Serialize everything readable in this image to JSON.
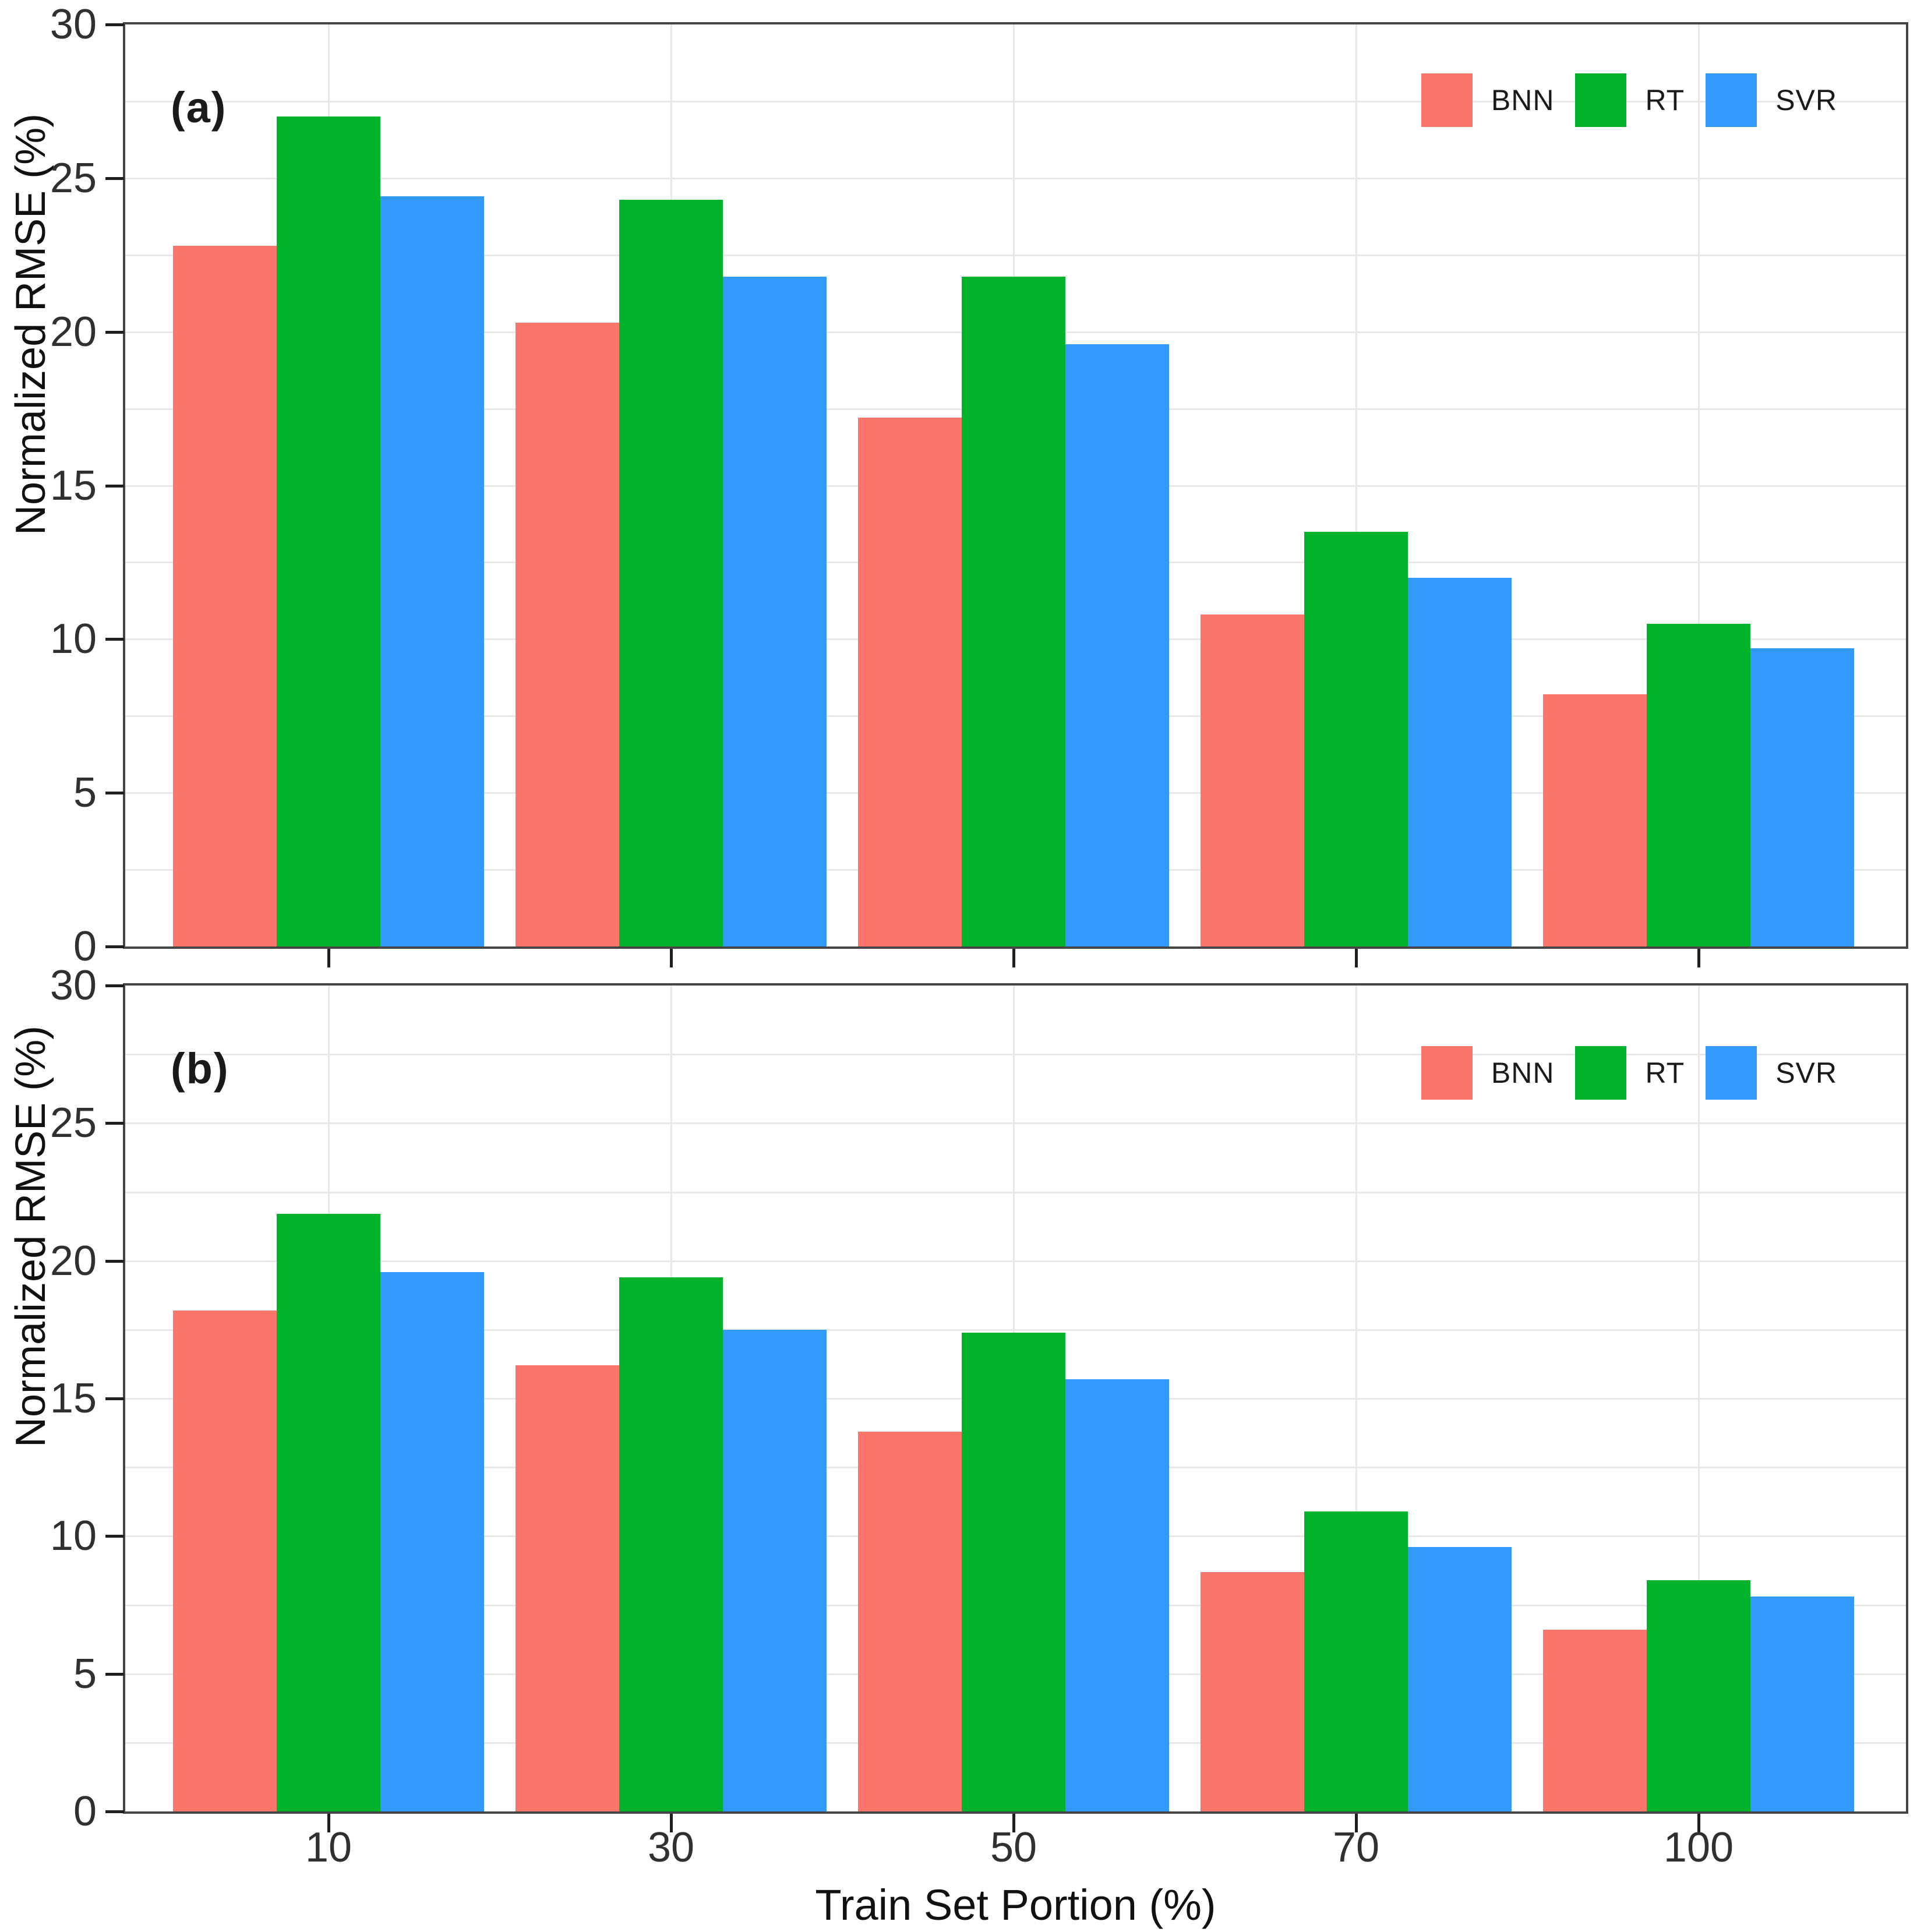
{
  "figure": {
    "x_axis_title": "Train Set Portion (%)",
    "background_color": "#ffffff",
    "panel_border_color": "#454545",
    "grid_color": "#e8e8e8",
    "tick_color": "#1f1f1f",
    "text_color": "#303030"
  },
  "chart_data": [
    {
      "type": "bar",
      "panel_label": "(a)",
      "categories": [
        "10",
        "30",
        "50",
        "70",
        "100"
      ],
      "series": [
        {
          "name": "BNN",
          "color": "#FA766B",
          "values": [
            22.8,
            20.3,
            17.2,
            10.8,
            8.2
          ]
        },
        {
          "name": "RT",
          "color": "#00B22C",
          "values": [
            27.0,
            24.3,
            21.8,
            13.5,
            10.5
          ]
        },
        {
          "name": "SVR",
          "color": "#3399FA",
          "values": [
            24.4,
            21.8,
            19.6,
            12.0,
            9.7
          ]
        }
      ],
      "xlabel": "Train Set Portion (%)",
      "ylabel": "Normalized RMSE (%)",
      "ylim": [
        0,
        30
      ],
      "yticks": [
        0,
        5,
        10,
        15,
        20,
        25,
        30
      ],
      "grid_step": 2.5,
      "grid": true,
      "legend_position": "top-right"
    },
    {
      "type": "bar",
      "panel_label": "(b)",
      "categories": [
        "10",
        "30",
        "50",
        "70",
        "100"
      ],
      "series": [
        {
          "name": "BNN",
          "color": "#FA766B",
          "values": [
            18.2,
            16.2,
            13.8,
            8.7,
            6.6
          ]
        },
        {
          "name": "RT",
          "color": "#00B22C",
          "values": [
            21.7,
            19.4,
            17.4,
            10.9,
            8.4
          ]
        },
        {
          "name": "SVR",
          "color": "#3399FA",
          "values": [
            19.6,
            17.5,
            15.7,
            9.6,
            7.8
          ]
        }
      ],
      "xlabel": "Train Set Portion (%)",
      "ylabel": "Normalized RMSE (%)",
      "ylim": [
        0,
        30
      ],
      "yticks": [
        0,
        5,
        10,
        15,
        20,
        25,
        30
      ],
      "grid_step": 2.5,
      "grid": true,
      "legend_position": "top-right"
    }
  ]
}
